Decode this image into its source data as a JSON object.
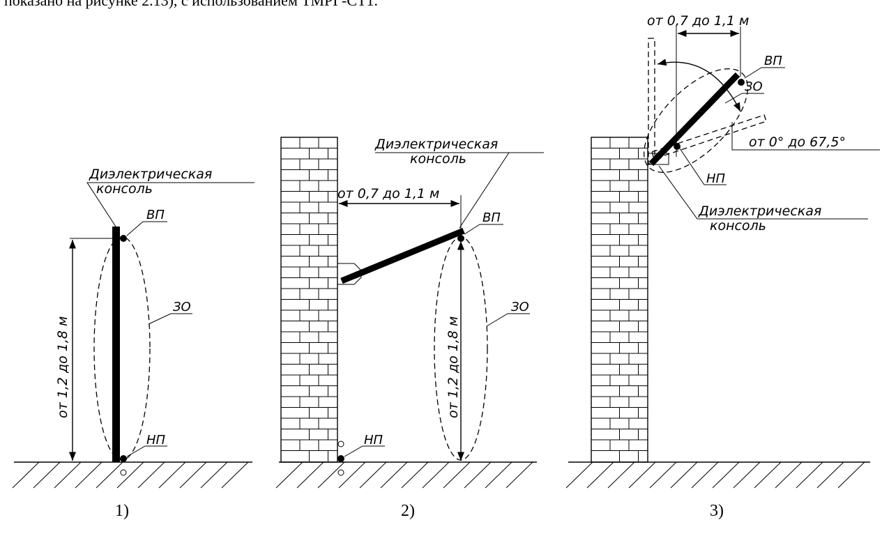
{
  "header_text": "показано на рисунке 2.13), с использованием ТМРГ-СТ1.",
  "labels": {
    "console": [
      "Диэлектрическая",
      "консоль"
    ],
    "vp": "ВП",
    "np": "НП",
    "zo": "ЗО",
    "height_range": "от 1,2 до 1,8 м",
    "reach_range": "от 0,7 до 1,1 м",
    "angle_range": "от 0° до 67,5°"
  },
  "captions": [
    "1)",
    "2)",
    "3)"
  ]
}
